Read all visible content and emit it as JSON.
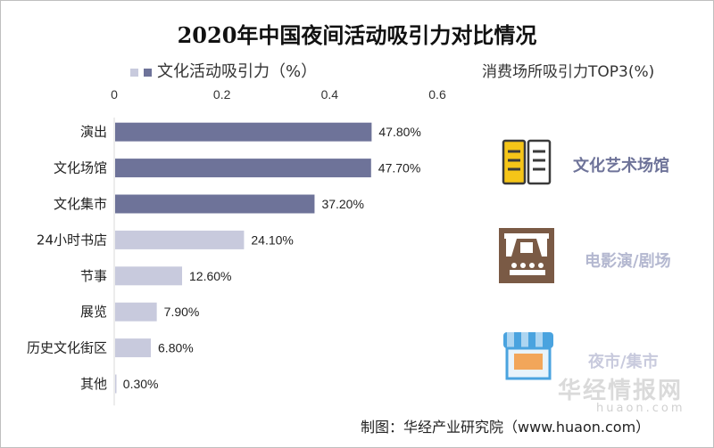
{
  "chart_data": {
    "type": "bar",
    "orientation": "horizontal",
    "title": "2020年中国夜间活动吸引力对比情况",
    "legend": "文化活动吸引力（%）",
    "xlim": [
      0,
      0.6
    ],
    "xticks": [
      "0",
      "0.2",
      "0.4",
      "0.6"
    ],
    "categories": [
      "演出",
      "文化场馆",
      "文化集市",
      "24小时书店",
      "节事",
      "展览",
      "历史文化街区",
      "其他"
    ],
    "values": [
      0.478,
      0.477,
      0.372,
      0.241,
      0.126,
      0.079,
      0.068,
      0.003
    ],
    "labels": [
      "47.80%",
      "47.70%",
      "37.20%",
      "24.10%",
      "12.60%",
      "7.90%",
      "6.80%",
      "0.30%"
    ],
    "highlight_count": 3,
    "colors": {
      "dark": "#6e7399",
      "light": "#c8cadd"
    }
  },
  "side_panel": {
    "title": "消费场所吸引力TOP3(%)",
    "items": [
      {
        "label": "文化艺术场馆",
        "icon": "book-icon",
        "color": "#6e7399"
      },
      {
        "label": "电影演/剧场",
        "icon": "theater-icon",
        "color": "#b4b8d0"
      },
      {
        "label": "夜市/集市",
        "icon": "market-stall-icon",
        "color": "#c8cadd"
      }
    ]
  },
  "source": "制图：华经产业研究院（www.huaon.com）",
  "watermark": {
    "main": "华经情报网",
    "sub": "huaon.com"
  }
}
